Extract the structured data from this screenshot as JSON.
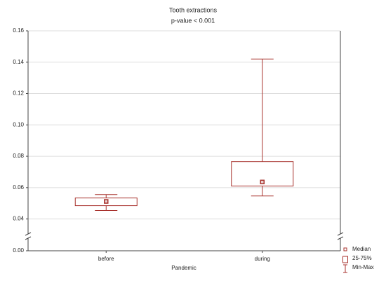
{
  "chart_data": {
    "type": "box",
    "title": "Tooth extractions",
    "subtitle": "p-value < 0.001",
    "x_label": "Pandemic",
    "categories": [
      "before",
      "during"
    ],
    "min": [
      0.0454,
      0.0547
    ],
    "q1": [
      0.0485,
      0.061
    ],
    "median": [
      0.0512,
      0.0636
    ],
    "q3": [
      0.0534,
      0.0766
    ],
    "max": [
      0.0556,
      0.142
    ],
    "color": "#a8322d",
    "ylim": [
      0,
      0.16
    ],
    "axis_break": [
      0,
      0.03
    ],
    "yticks": [
      {
        "value": 0,
        "label": "0.00"
      },
      0.04,
      0.06,
      0.08,
      {
        "value": 0.1,
        "label": "0.10"
      },
      0.12,
      0.14,
      0.16
    ],
    "grid": true,
    "legend": [
      "Median",
      "25-75%",
      "Min-Max"
    ],
    "legend_position": "bottom-right"
  }
}
